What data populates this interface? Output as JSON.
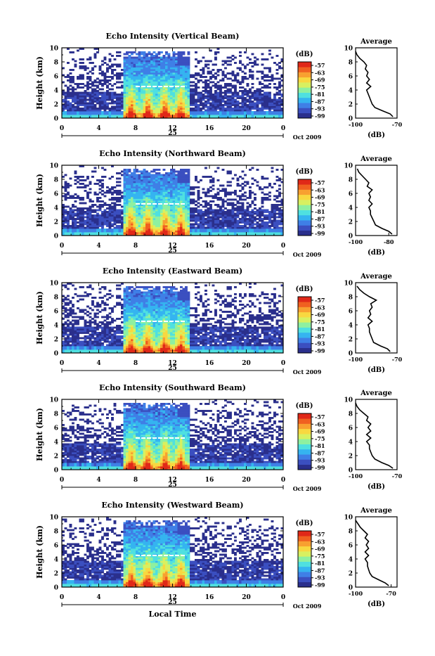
{
  "chart_data": [
    {
      "type": "heatmap",
      "title": "Echo Intensity (Vertical Beam)",
      "ylabel": "Height (km)",
      "yticks": [
        "0",
        "2",
        "4",
        "6",
        "8",
        "10"
      ],
      "xticks": [
        "0",
        "4",
        "8",
        "12",
        "16",
        "20",
        "0"
      ],
      "date_day": "25",
      "date_month": "Oct 2009",
      "colorbar_unit": "(dB)",
      "colorbar_ticks": [
        "-57",
        "-63",
        "-69",
        "-75",
        "-81",
        "-87",
        "-93",
        "-99"
      ],
      "ylim": [
        0,
        10
      ],
      "xlim": [
        0,
        24
      ],
      "average": {
        "title": "Average",
        "xlabel": "(dB)",
        "xticks": [
          "-100",
          "-70"
        ],
        "xlim": [
          -100,
          -70
        ],
        "yticks": [
          "0",
          "2",
          "4",
          "6",
          "8",
          "10"
        ],
        "profile": {
          "height": [
            0.2,
            0.6,
            1.0,
            1.5,
            2.0,
            2.5,
            3.0,
            3.5,
            4.0,
            4.5,
            5.0,
            5.5,
            6.0,
            6.5,
            7.0,
            7.5,
            8.0,
            8.5,
            9.0,
            9.5
          ],
          "db": [
            -73,
            -75,
            -80,
            -86,
            -88,
            -89,
            -90,
            -91,
            -92,
            -89,
            -92,
            -90,
            -92,
            -91,
            -93,
            -92,
            -94,
            -97,
            -99,
            -100
          ]
        }
      }
    },
    {
      "type": "heatmap",
      "title": "Echo Intensity (Northward Beam)",
      "ylabel": "Height (km)",
      "yticks": [
        "0",
        "2",
        "4",
        "6",
        "8",
        "10"
      ],
      "xticks": [
        "0",
        "4",
        "8",
        "12",
        "16",
        "20",
        "0"
      ],
      "date_day": "25",
      "date_month": "Oct 2009",
      "colorbar_unit": "(dB)",
      "colorbar_ticks": [
        "-57",
        "-63",
        "-69",
        "-75",
        "-81",
        "-87",
        "-93",
        "-99"
      ],
      "ylim": [
        0,
        10
      ],
      "xlim": [
        0,
        24
      ],
      "average": {
        "title": "Average",
        "xlabel": "(dB)",
        "xticks": [
          "-100",
          "-80"
        ],
        "xlim": [
          -100,
          -75
        ],
        "yticks": [
          "0",
          "2",
          "4",
          "6",
          "8",
          "10"
        ],
        "profile": {
          "height": [
            0.2,
            0.6,
            1.0,
            1.5,
            2.0,
            2.5,
            3.0,
            3.5,
            4.0,
            4.5,
            5.0,
            5.5,
            6.0,
            6.5,
            7.0,
            7.5,
            8.0,
            8.5,
            9.0,
            9.5
          ],
          "db": [
            -78,
            -80,
            -84,
            -88,
            -89,
            -90,
            -91,
            -91,
            -92,
            -90,
            -92,
            -91,
            -92,
            -90,
            -93,
            -92,
            -94,
            -96,
            -98,
            -99
          ]
        }
      }
    },
    {
      "type": "heatmap",
      "title": "Echo Intensity (Eastward Beam)",
      "ylabel": "Height (km)",
      "yticks": [
        "0",
        "2",
        "4",
        "6",
        "8",
        "10"
      ],
      "xticks": [
        "0",
        "4",
        "8",
        "12",
        "16",
        "20",
        "0"
      ],
      "date_day": "25",
      "date_month": "Oct 2009",
      "colorbar_unit": "(dB)",
      "colorbar_ticks": [
        "-57",
        "-63",
        "-69",
        "-75",
        "-81",
        "-87",
        "-93",
        "-99"
      ],
      "ylim": [
        0,
        10
      ],
      "xlim": [
        0,
        24
      ],
      "average": {
        "title": "Average",
        "xlabel": "(dB)",
        "xticks": [
          "-100",
          "-70"
        ],
        "xlim": [
          -100,
          -70
        ],
        "yticks": [
          "0",
          "2",
          "4",
          "6",
          "8",
          "10"
        ],
        "profile": {
          "height": [
            0.2,
            0.6,
            1.0,
            1.5,
            2.0,
            2.5,
            3.0,
            3.5,
            4.0,
            4.5,
            5.0,
            5.5,
            6.0,
            6.5,
            7.0,
            7.5,
            8.0,
            8.5,
            9.0,
            9.5
          ],
          "db": [
            -75,
            -77,
            -82,
            -87,
            -88,
            -89,
            -90,
            -90,
            -91,
            -88,
            -91,
            -89,
            -90,
            -88,
            -89,
            -85,
            -90,
            -94,
            -97,
            -99
          ]
        }
      }
    },
    {
      "type": "heatmap",
      "title": "Echo Intensity (Southward Beam)",
      "ylabel": "Height (km)",
      "yticks": [
        "0",
        "2",
        "4",
        "6",
        "8",
        "10"
      ],
      "xticks": [
        "0",
        "4",
        "8",
        "12",
        "16",
        "20",
        "0"
      ],
      "date_day": "25",
      "date_month": "Oct 2009",
      "colorbar_unit": "(dB)",
      "colorbar_ticks": [
        "-57",
        "-63",
        "-69",
        "-75",
        "-81",
        "-87",
        "-93",
        "-99"
      ],
      "ylim": [
        0,
        10
      ],
      "xlim": [
        0,
        24
      ],
      "average": {
        "title": "Average",
        "xlabel": "(dB)",
        "xticks": [
          "-100",
          "-70"
        ],
        "xlim": [
          -100,
          -70
        ],
        "yticks": [
          "0",
          "2",
          "4",
          "6",
          "8",
          "10"
        ],
        "profile": {
          "height": [
            0.2,
            0.6,
            1.0,
            1.5,
            2.0,
            2.5,
            3.0,
            3.5,
            4.0,
            4.5,
            5.0,
            5.5,
            6.0,
            6.5,
            7.0,
            7.5,
            8.0,
            8.5,
            9.0,
            9.5
          ],
          "db": [
            -73,
            -76,
            -81,
            -86,
            -88,
            -89,
            -90,
            -90,
            -92,
            -89,
            -92,
            -89,
            -91,
            -89,
            -92,
            -91,
            -94,
            -97,
            -99,
            -100
          ]
        }
      }
    },
    {
      "type": "heatmap",
      "title": "Echo Intensity (Westward Beam)",
      "ylabel": "Height (km)",
      "yticks": [
        "0",
        "2",
        "4",
        "6",
        "8",
        "10"
      ],
      "xticks": [
        "0",
        "4",
        "8",
        "12",
        "16",
        "20",
        "0"
      ],
      "date_day": "25",
      "date_month": "Oct 2009",
      "xlabel": "Local Time",
      "colorbar_unit": "(dB)",
      "colorbar_ticks": [
        "-57",
        "-63",
        "-69",
        "-75",
        "-81",
        "-87",
        "-93",
        "-99"
      ],
      "ylim": [
        0,
        10
      ],
      "xlim": [
        0,
        24
      ],
      "average": {
        "title": "Average",
        "xlabel": "(dB)",
        "xticks": [
          "-100",
          "-70"
        ],
        "xlim": [
          -100,
          -65
        ],
        "yticks": [
          "0",
          "2",
          "4",
          "6",
          "8",
          "10"
        ],
        "profile": {
          "height": [
            0.2,
            0.6,
            1.0,
            1.5,
            2.0,
            2.5,
            3.0,
            3.5,
            4.0,
            4.5,
            5.0,
            5.5,
            6.0,
            6.5,
            7.0,
            7.5,
            8.0,
            8.5,
            9.0,
            9.5
          ],
          "db": [
            -72,
            -75,
            -80,
            -86,
            -88,
            -89,
            -90,
            -90,
            -92,
            -89,
            -92,
            -89,
            -91,
            -89,
            -92,
            -90,
            -93,
            -96,
            -98,
            -100
          ]
        }
      }
    }
  ],
  "colors": {
    "scale": [
      "#2a2f8c",
      "#3b4fc0",
      "#3f7fe6",
      "#35b4f0",
      "#4fe0e0",
      "#8ef0a0",
      "#d8f060",
      "#f8d840",
      "#f8a030",
      "#f06020",
      "#e02818"
    ]
  }
}
